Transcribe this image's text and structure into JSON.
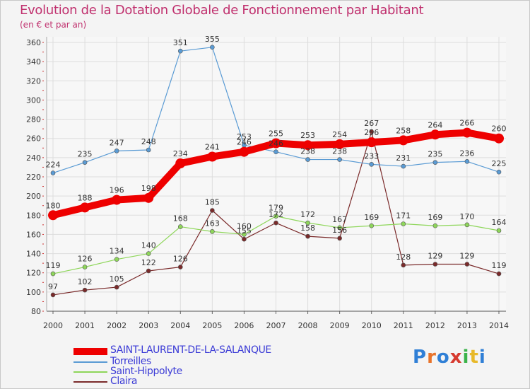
{
  "title": "Evolution de la Dotation Globale de Fonctionnement par Habitant",
  "subtitle": "(en € et par an)",
  "chart_data": {
    "type": "line",
    "title": "Evolution de la Dotation Globale de Fonctionnement par Habitant",
    "subtitle": "(en € et par an)",
    "xlabel": "",
    "ylabel": "",
    "ylim": [
      80,
      360
    ],
    "yticks": [
      80,
      100,
      120,
      140,
      160,
      180,
      200,
      220,
      240,
      260,
      280,
      300,
      320,
      340,
      360
    ],
    "grid": true,
    "legend_position": "bottom-left",
    "x": [
      "2000",
      "2001",
      "2002",
      "2003",
      "2004",
      "2005",
      "2006",
      "2007",
      "2008",
      "2009",
      "2010",
      "2011",
      "2012",
      "2013",
      "2014"
    ],
    "series": [
      {
        "name": "SAINT-LAURENT-DE-LA-SALANQUE",
        "color": "#ee0000",
        "values": [
          180,
          188,
          196,
          198,
          234,
          241,
          246,
          255,
          253,
          254,
          256,
          258,
          264,
          266,
          260
        ]
      },
      {
        "name": "Torreilles",
        "color": "#5a9bd4",
        "values": [
          224,
          235,
          247,
          248,
          351,
          355,
          253,
          246,
          238,
          238,
          233,
          231,
          235,
          236,
          225
        ]
      },
      {
        "name": "Saint-Hippolyte",
        "color": "#8ed65a",
        "values": [
          119,
          126,
          134,
          140,
          168,
          163,
          160,
          179,
          172,
          167,
          169,
          171,
          169,
          170,
          164
        ]
      },
      {
        "name": "Claira",
        "color": "#7a2a2a",
        "values": [
          97,
          102,
          105,
          122,
          126,
          185,
          155,
          172,
          158,
          156,
          267,
          128,
          129,
          129,
          119
        ]
      }
    ]
  },
  "legend": {
    "items": [
      {
        "label": "SAINT-LAURENT-DE-LA-SALANQUE",
        "color": "#ee0000"
      },
      {
        "label": "Torreilles",
        "color": "#5a9bd4"
      },
      {
        "label": "Saint-Hippolyte",
        "color": "#8ed65a"
      },
      {
        "label": "Claira",
        "color": "#7a2a2a"
      }
    ]
  },
  "logo": {
    "text": "Proxiti"
  }
}
